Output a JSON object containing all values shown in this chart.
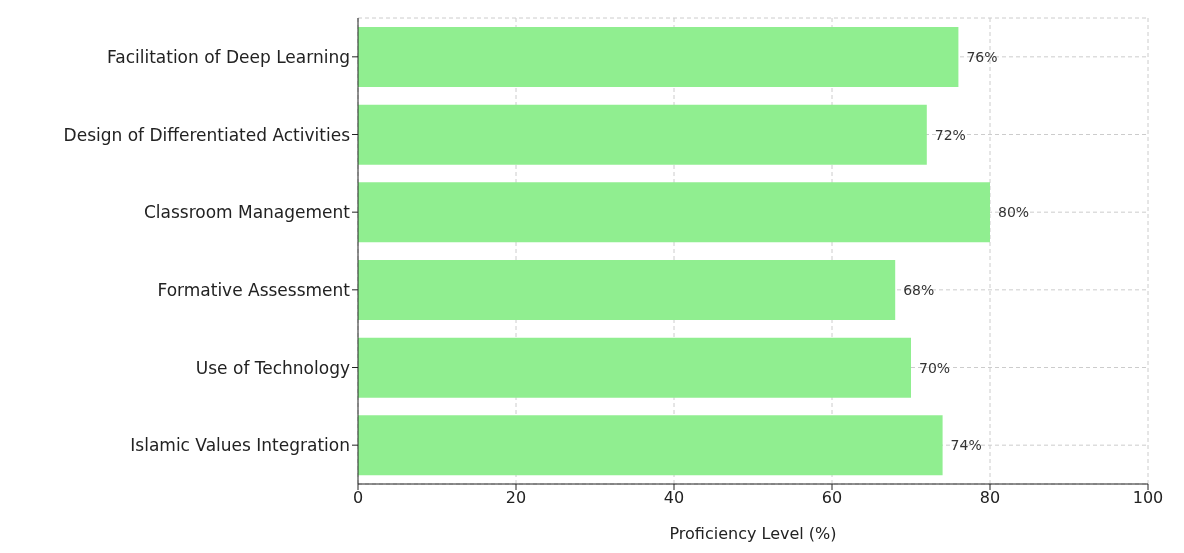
{
  "chart_data": {
    "type": "bar",
    "orientation": "horizontal",
    "xlabel": "Proficiency Level (%)",
    "categories": [
      "Facilitation of Deep Learning",
      "Design of Differentiated Activities",
      "Classroom Management",
      "Formative Assessment",
      "Use of Technology",
      "Islamic Values Integration"
    ],
    "values": [
      76,
      72,
      80,
      68,
      70,
      74
    ],
    "value_labels": [
      "76%",
      "72%",
      "80%",
      "68%",
      "70%",
      "74%"
    ],
    "color": "#90ee90",
    "xlim": [
      0,
      100
    ],
    "xticks": [
      0,
      20,
      40,
      60,
      80,
      100
    ],
    "grid": true,
    "line_style": "dashed"
  }
}
